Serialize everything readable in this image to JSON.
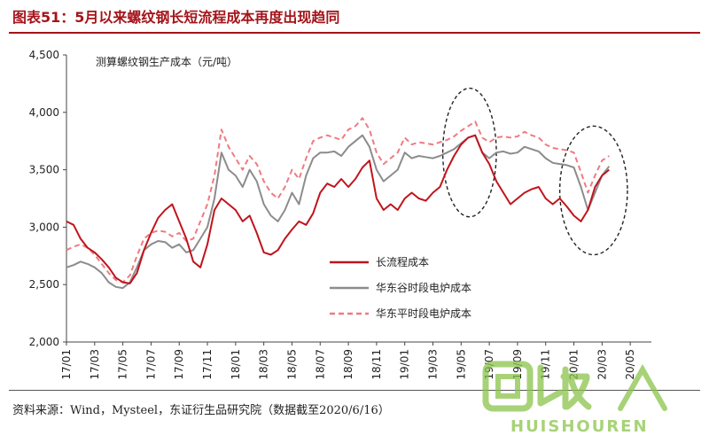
{
  "header": {
    "title": "图表51：5月以来螺纹钢长短流程成本再度出现趋同"
  },
  "footer": {
    "source": "资料来源：Wind，Mysteel，东证衍生品研究院（数据截至2020/6/16）"
  },
  "watermark": {
    "text": "回收",
    "subtext": "HUISHOUREN"
  },
  "chart_data": {
    "type": "line",
    "ylabel": "测算螺纹钢生产成本（元/吨）",
    "xlabel": "",
    "ylim": [
      2000,
      4500
    ],
    "yticks": [
      2000,
      2500,
      3000,
      3500,
      4000,
      4500
    ],
    "yticklabels": [
      "2,000",
      "2,500",
      "3,000",
      "3,500",
      "4,000",
      "4,500"
    ],
    "xlim": [
      0,
      41.5
    ],
    "xticks": [
      {
        "pos": 0,
        "label": "17/01"
      },
      {
        "pos": 2,
        "label": "17/03"
      },
      {
        "pos": 4,
        "label": "17/05"
      },
      {
        "pos": 6,
        "label": "17/07"
      },
      {
        "pos": 8,
        "label": "17/09"
      },
      {
        "pos": 10,
        "label": "17/11"
      },
      {
        "pos": 12,
        "label": "18/01"
      },
      {
        "pos": 14,
        "label": "18/03"
      },
      {
        "pos": 16,
        "label": "18/05"
      },
      {
        "pos": 18,
        "label": "18/07"
      },
      {
        "pos": 20,
        "label": "18/09"
      },
      {
        "pos": 22,
        "label": "18/11"
      },
      {
        "pos": 24,
        "label": "19/01"
      },
      {
        "pos": 26,
        "label": "19/03"
      },
      {
        "pos": 28,
        "label": "19/05"
      },
      {
        "pos": 30,
        "label": "19/07"
      },
      {
        "pos": 32,
        "label": "19/09"
      },
      {
        "pos": 34,
        "label": "19/11"
      },
      {
        "pos": 36,
        "label": "20/01"
      },
      {
        "pos": 38,
        "label": "20/03"
      },
      {
        "pos": 40,
        "label": "20/05"
      }
    ],
    "legend": "inside-lower-right",
    "grid": false,
    "series": [
      {
        "name": "长流程成本",
        "color": "#c0141c",
        "style": "solid",
        "points": [
          [
            0,
            3050
          ],
          [
            0.5,
            3020
          ],
          [
            1,
            2900
          ],
          [
            1.5,
            2820
          ],
          [
            2,
            2780
          ],
          [
            2.5,
            2720
          ],
          [
            3,
            2650
          ],
          [
            3.5,
            2560
          ],
          [
            4,
            2520
          ],
          [
            4.5,
            2510
          ],
          [
            5,
            2600
          ],
          [
            5.5,
            2800
          ],
          [
            6,
            2950
          ],
          [
            6.5,
            3080
          ],
          [
            7,
            3150
          ],
          [
            7.5,
            3200
          ],
          [
            8,
            3050
          ],
          [
            8.5,
            2900
          ],
          [
            9,
            2700
          ],
          [
            9.5,
            2650
          ],
          [
            10,
            2850
          ],
          [
            10.5,
            3150
          ],
          [
            11,
            3250
          ],
          [
            11.5,
            3200
          ],
          [
            12,
            3150
          ],
          [
            12.5,
            3050
          ],
          [
            13,
            3100
          ],
          [
            13.5,
            2950
          ],
          [
            14,
            2780
          ],
          [
            14.5,
            2760
          ],
          [
            15,
            2800
          ],
          [
            15.5,
            2900
          ],
          [
            16,
            2980
          ],
          [
            16.5,
            3050
          ],
          [
            17,
            3020
          ],
          [
            17.5,
            3120
          ],
          [
            18,
            3300
          ],
          [
            18.5,
            3380
          ],
          [
            19,
            3350
          ],
          [
            19.5,
            3420
          ],
          [
            20,
            3350
          ],
          [
            20.5,
            3420
          ],
          [
            21,
            3520
          ],
          [
            21.5,
            3580
          ],
          [
            22,
            3250
          ],
          [
            22.5,
            3150
          ],
          [
            23,
            3200
          ],
          [
            23.5,
            3150
          ],
          [
            24,
            3250
          ],
          [
            24.5,
            3300
          ],
          [
            25,
            3250
          ],
          [
            25.5,
            3230
          ],
          [
            26,
            3300
          ],
          [
            26.5,
            3350
          ],
          [
            27,
            3500
          ],
          [
            27.5,
            3620
          ],
          [
            28,
            3720
          ],
          [
            28.5,
            3780
          ],
          [
            29,
            3800
          ],
          [
            29.5,
            3650
          ],
          [
            30,
            3550
          ],
          [
            30.5,
            3400
          ],
          [
            31,
            3300
          ],
          [
            31.5,
            3200
          ],
          [
            32,
            3250
          ],
          [
            32.5,
            3300
          ],
          [
            33,
            3330
          ],
          [
            33.5,
            3350
          ],
          [
            34,
            3250
          ],
          [
            34.5,
            3200
          ],
          [
            35,
            3250
          ],
          [
            35.5,
            3180
          ],
          [
            36,
            3100
          ],
          [
            36.5,
            3050
          ],
          [
            37,
            3150
          ],
          [
            37.5,
            3350
          ],
          [
            38,
            3450
          ],
          [
            38.5,
            3500
          ]
        ]
      },
      {
        "name": "华东谷时段电炉成本",
        "color": "#8c8c8c",
        "style": "solid",
        "points": [
          [
            0,
            2650
          ],
          [
            0.5,
            2670
          ],
          [
            1,
            2700
          ],
          [
            1.5,
            2680
          ],
          [
            2,
            2650
          ],
          [
            2.5,
            2600
          ],
          [
            3,
            2520
          ],
          [
            3.5,
            2480
          ],
          [
            4,
            2470
          ],
          [
            4.5,
            2520
          ],
          [
            5,
            2650
          ],
          [
            5.5,
            2800
          ],
          [
            6,
            2850
          ],
          [
            6.5,
            2880
          ],
          [
            7,
            2870
          ],
          [
            7.5,
            2820
          ],
          [
            8,
            2850
          ],
          [
            8.5,
            2780
          ],
          [
            9,
            2800
          ],
          [
            9.5,
            2900
          ],
          [
            10,
            3000
          ],
          [
            10.5,
            3250
          ],
          [
            11,
            3650
          ],
          [
            11.5,
            3500
          ],
          [
            12,
            3450
          ],
          [
            12.5,
            3350
          ],
          [
            13,
            3500
          ],
          [
            13.5,
            3400
          ],
          [
            14,
            3200
          ],
          [
            14.5,
            3100
          ],
          [
            15,
            3050
          ],
          [
            15.5,
            3150
          ],
          [
            16,
            3300
          ],
          [
            16.5,
            3200
          ],
          [
            17,
            3450
          ],
          [
            17.5,
            3600
          ],
          [
            18,
            3650
          ],
          [
            18.5,
            3650
          ],
          [
            19,
            3660
          ],
          [
            19.5,
            3620
          ],
          [
            20,
            3700
          ],
          [
            20.5,
            3750
          ],
          [
            21,
            3800
          ],
          [
            21.5,
            3700
          ],
          [
            22,
            3500
          ],
          [
            22.5,
            3400
          ],
          [
            23,
            3450
          ],
          [
            23.5,
            3500
          ],
          [
            24,
            3650
          ],
          [
            24.5,
            3600
          ],
          [
            25,
            3620
          ],
          [
            25.5,
            3610
          ],
          [
            26,
            3600
          ],
          [
            26.5,
            3620
          ],
          [
            27,
            3650
          ],
          [
            27.5,
            3680
          ],
          [
            28,
            3730
          ],
          [
            28.5,
            3780
          ],
          [
            29,
            3800
          ],
          [
            29.5,
            3650
          ],
          [
            30,
            3600
          ],
          [
            30.5,
            3650
          ],
          [
            31,
            3660
          ],
          [
            31.5,
            3640
          ],
          [
            32,
            3650
          ],
          [
            32.5,
            3700
          ],
          [
            33,
            3680
          ],
          [
            33.5,
            3660
          ],
          [
            34,
            3600
          ],
          [
            34.5,
            3560
          ],
          [
            35,
            3550
          ],
          [
            35.5,
            3540
          ],
          [
            36,
            3520
          ],
          [
            36.5,
            3350
          ],
          [
            37,
            3150
          ],
          [
            37.5,
            3300
          ],
          [
            38,
            3450
          ],
          [
            38.5,
            3530
          ]
        ]
      },
      {
        "name": "华东平时段电炉成本",
        "color": "#ee7b82",
        "style": "dashed",
        "points": [
          [
            0,
            2800
          ],
          [
            0.5,
            2830
          ],
          [
            1,
            2850
          ],
          [
            1.5,
            2820
          ],
          [
            2,
            2760
          ],
          [
            2.5,
            2680
          ],
          [
            3,
            2600
          ],
          [
            3.5,
            2540
          ],
          [
            4,
            2520
          ],
          [
            4.5,
            2580
          ],
          [
            5,
            2750
          ],
          [
            5.5,
            2900
          ],
          [
            6,
            2950
          ],
          [
            6.5,
            2970
          ],
          [
            7,
            2960
          ],
          [
            7.5,
            2920
          ],
          [
            8,
            2950
          ],
          [
            8.5,
            2880
          ],
          [
            9,
            2900
          ],
          [
            9.5,
            3050
          ],
          [
            10,
            3200
          ],
          [
            10.5,
            3450
          ],
          [
            11,
            3850
          ],
          [
            11.5,
            3700
          ],
          [
            12,
            3600
          ],
          [
            12.5,
            3500
          ],
          [
            13,
            3620
          ],
          [
            13.5,
            3550
          ],
          [
            14,
            3400
          ],
          [
            14.5,
            3300
          ],
          [
            15,
            3250
          ],
          [
            15.5,
            3350
          ],
          [
            16,
            3500
          ],
          [
            16.5,
            3420
          ],
          [
            17,
            3600
          ],
          [
            17.5,
            3750
          ],
          [
            18,
            3780
          ],
          [
            18.5,
            3800
          ],
          [
            19,
            3780
          ],
          [
            19.5,
            3760
          ],
          [
            20,
            3850
          ],
          [
            20.5,
            3880
          ],
          [
            21,
            3950
          ],
          [
            21.5,
            3850
          ],
          [
            22,
            3650
          ],
          [
            22.5,
            3550
          ],
          [
            23,
            3600
          ],
          [
            23.5,
            3650
          ],
          [
            24,
            3780
          ],
          [
            24.5,
            3720
          ],
          [
            25,
            3740
          ],
          [
            25.5,
            3730
          ],
          [
            26,
            3720
          ],
          [
            26.5,
            3740
          ],
          [
            27,
            3760
          ],
          [
            27.5,
            3790
          ],
          [
            28,
            3840
          ],
          [
            28.5,
            3880
          ],
          [
            29,
            3920
          ],
          [
            29.5,
            3780
          ],
          [
            30,
            3740
          ],
          [
            30.5,
            3780
          ],
          [
            31,
            3790
          ],
          [
            31.5,
            3780
          ],
          [
            32,
            3790
          ],
          [
            32.5,
            3830
          ],
          [
            33,
            3800
          ],
          [
            33.5,
            3780
          ],
          [
            34,
            3720
          ],
          [
            34.5,
            3690
          ],
          [
            35,
            3680
          ],
          [
            35.5,
            3670
          ],
          [
            36,
            3650
          ],
          [
            36.5,
            3480
          ],
          [
            37,
            3300
          ],
          [
            37.5,
            3450
          ],
          [
            38,
            3580
          ],
          [
            38.5,
            3620
          ]
        ]
      }
    ],
    "annotations": [
      {
        "type": "dashed-ellipse",
        "cx": 28.6,
        "cy": 3650,
        "rx": 1.9,
        "ry": 560
      },
      {
        "type": "dashed-ellipse",
        "cx": 37.4,
        "cy": 3320,
        "rx": 2.4,
        "ry": 560
      }
    ]
  }
}
